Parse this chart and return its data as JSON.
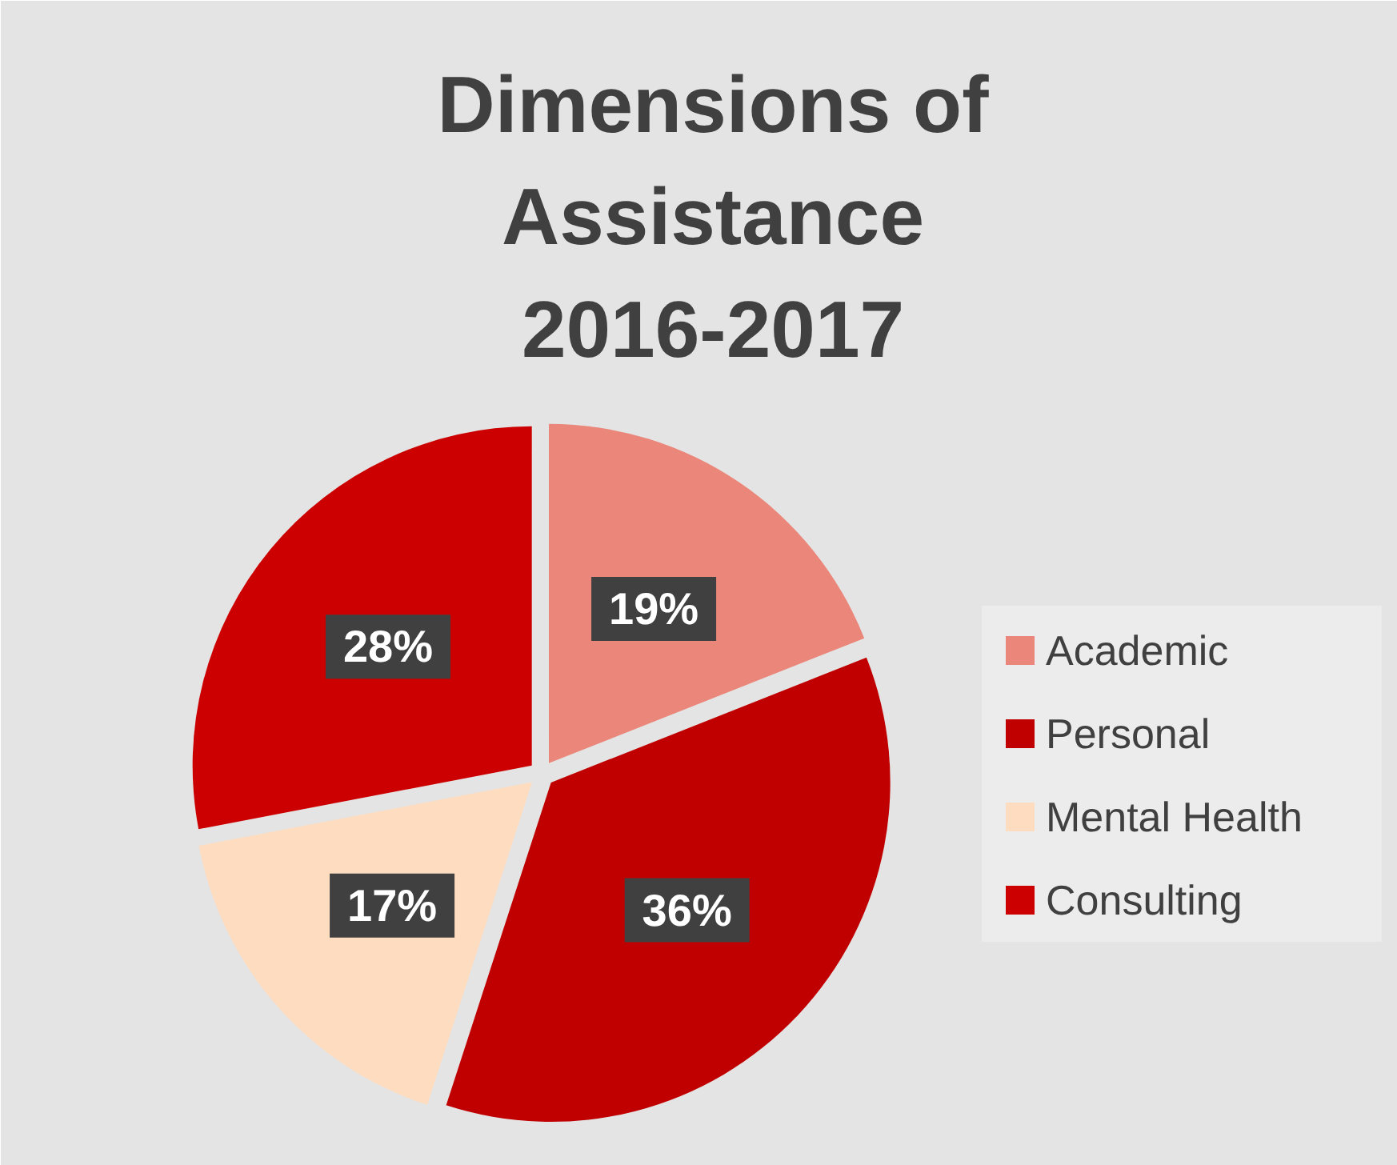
{
  "chart_data": {
    "type": "pie",
    "title": "Dimensions of\nAssistance\n2016-2017",
    "categories": [
      "Academic",
      "Personal",
      "Mental Health",
      "Consulting"
    ],
    "values": [
      19,
      36,
      17,
      28
    ],
    "value_labels": [
      "19%",
      "36%",
      "17%",
      "28%"
    ],
    "colors": [
      "#ea877a",
      "#c00000",
      "#fddcc0",
      "#cc0000"
    ],
    "legend": "right"
  }
}
